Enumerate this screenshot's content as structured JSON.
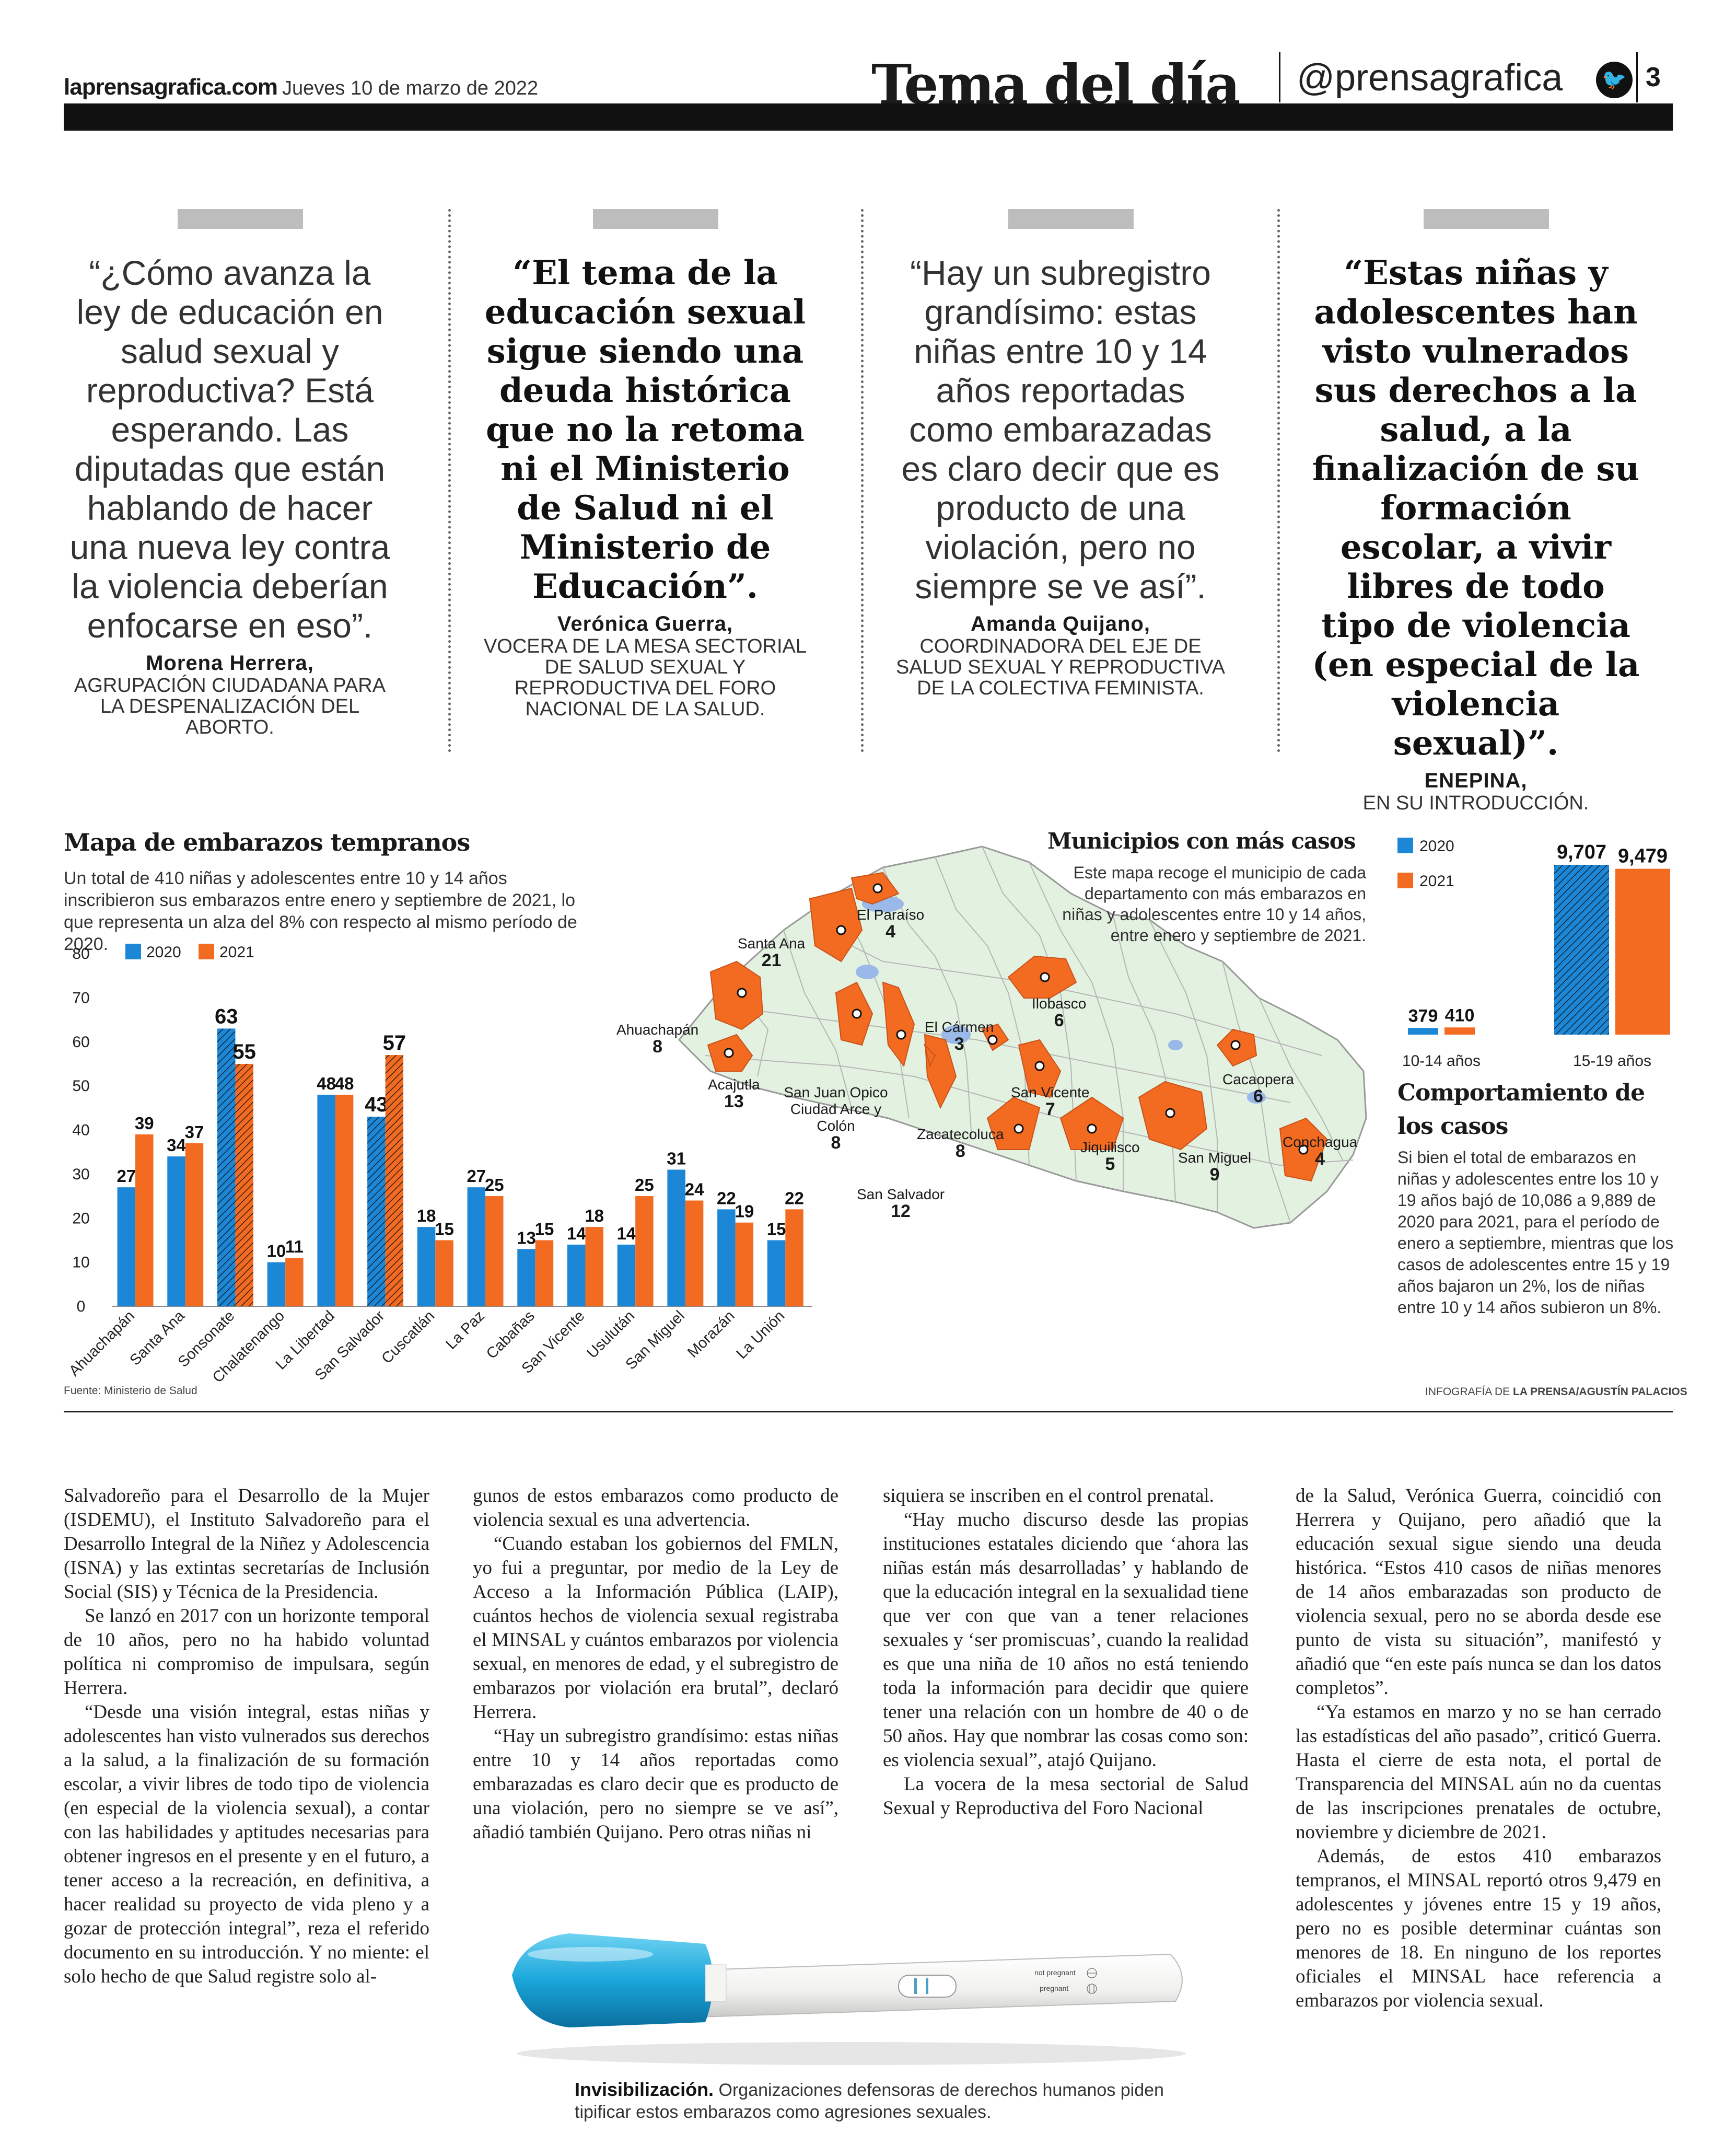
{
  "header": {
    "site": "laprensagrafica.com",
    "date": "Jueves 10 de marzo de 2022",
    "section": "Tema del día",
    "handle": "@prensagrafica",
    "page": "3"
  },
  "quotes": [
    {
      "text": "“¿Cómo avanza la ley de educación en salud sexual y reproductiva? Está esperando. Las diputadas que están hablando de hacer una nueva ley contra la violencia deberían enfocarse en eso”.",
      "name": "Morena Herrera,",
      "role": "AGRUPACIÓN CIUDADANA PARA LA DESPENALIZACIÓN DEL ABORTO."
    },
    {
      "text": "“El tema de la educación sexual sigue siendo una deuda histórica que no la retoma ni el Ministerio de Salud ni el Ministerio de Educación”.",
      "name": "Verónica Guerra,",
      "role": "VOCERA DE LA MESA SECTORIAL DE SALUD SEXUAL Y REPRODUCTIVA DEL FORO NACIONAL DE LA SALUD."
    },
    {
      "text": "“Hay un subregistro grandísimo: estas niñas entre 10 y 14 años reportadas como embarazadas es claro decir que es producto de una violación, pero no siempre se ve así”.",
      "name": "Amanda Quijano,",
      "role": "COORDINADORA DEL EJE DE SALUD SEXUAL Y REPRODUCTIVA DE LA COLECTIVA FEMINISTA."
    },
    {
      "text": "“Estas niñas y adolescentes han visto vulnerados sus derechos a la salud, a la finalización de su formación escolar, a vivir libres de todo tipo de violencia (en especial de la violencia sexual)”.",
      "name": "ENEPINA,",
      "role": "EN SU INTRODUCCIÓN."
    }
  ],
  "infographic": {
    "title": "Mapa de embarazos tempranos",
    "subtitle": "Un total de 410 niñas y adolescentes entre 10 y 14 años inscribieron sus embarazos entre enero y septiembre de 2021, lo que representa un alza del 8% con respecto al mismo período de 2020.",
    "source": "Fuente: Ministerio de Salud",
    "credit_prefix": "INFOGRAFÍA DE ",
    "credit": "LA PRENSA/AGUSTÍN PALACIOS",
    "map_title": "Municipios con más casos",
    "map_text": "Este mapa recoge el municipio de cada departamento con más embarazos en niñas y adolescentes entre 10 y 14 años, entre enero y septiembre de 2021.",
    "behavior_title": "Comportamiento de los casos",
    "behavior_text": "Si bien el total de embarazos en niñas y adolescentes entre los 10 y 19 años bajó de 10,086 a 9,889 de 2020 para 2021, para el período de enero a septiembre, mientras que los casos de adolescentes entre 15 y 19 años bajaron un 2%, los de niñas entre 10 y 14 años subieron un 8%.",
    "municipios": [
      {
        "name": "Santa Ana",
        "value": "21"
      },
      {
        "name": "El Paraíso",
        "value": "4"
      },
      {
        "name": "Ahuachapán",
        "value": "8"
      },
      {
        "name": "Acajutla",
        "value": "13"
      },
      {
        "name": "San Juan Opico Ciudad Arce y Colón",
        "value": "8"
      },
      {
        "name": "El Cármen",
        "value": "3"
      },
      {
        "name": "Ilobasco",
        "value": "6"
      },
      {
        "name": "San Vicente",
        "value": "7"
      },
      {
        "name": "Zacatecoluca",
        "value": "8"
      },
      {
        "name": "Jiquilisco",
        "value": "5"
      },
      {
        "name": "San Miguel",
        "value": "9"
      },
      {
        "name": "Cacaopera",
        "value": "6"
      },
      {
        "name": "Conchagua",
        "value": "4"
      },
      {
        "name": "San Salvador",
        "value": "12"
      }
    ]
  },
  "chart_data": [
    {
      "type": "bar",
      "title": "",
      "categories": [
        "Ahuachapán",
        "Santa Ana",
        "Sonsonate",
        "Chalatenango",
        "La Libertad",
        "San Salvador",
        "Cuscatlán",
        "La Paz",
        "Cabañas",
        "San Vicente",
        "Usulután",
        "San Miguel",
        "Morazán",
        "La Unión"
      ],
      "series": [
        {
          "name": "2020",
          "values": [
            27,
            34,
            63,
            10,
            48,
            43,
            18,
            27,
            13,
            14,
            14,
            31,
            22,
            15
          ]
        },
        {
          "name": "2021",
          "values": [
            39,
            37,
            55,
            11,
            48,
            57,
            15,
            25,
            15,
            18,
            25,
            24,
            19,
            22
          ]
        }
      ],
      "ylim": [
        0,
        80
      ],
      "yticks": [
        0,
        10,
        20,
        30,
        40,
        50,
        60,
        70,
        80
      ],
      "highlight": [
        "Sonsonate",
        "San Salvador"
      ],
      "colors": {
        "2020": "#1c87d6",
        "2021": "#f26b21"
      },
      "legend": "top-left"
    },
    {
      "type": "bar",
      "title": "",
      "categories": [
        "10-14 años",
        "15-19 años"
      ],
      "series": [
        {
          "name": "2020",
          "values": [
            379,
            9707
          ]
        },
        {
          "name": "2021",
          "values": [
            410,
            9479
          ]
        }
      ],
      "value_labels": [
        [
          "379",
          "9,707"
        ],
        [
          "410",
          "9,479"
        ]
      ],
      "colors": {
        "2020": "#1c87d6",
        "2021": "#f26b21"
      },
      "legend": "top-left"
    }
  ],
  "body": {
    "col1": [
      "Salvadoreño para el Desarrollo de la Mujer (ISDEMU), el Instituto Salvadoreño para el Desarrollo Integral de la Niñez y Adolescencia (ISNA) y las extintas secretarías de Inclusión Social (SIS) y Técnica de la Presidencia.",
      "Se lanzó en 2017 con un horizonte temporal de 10 años, pero no ha habido voluntad política ni compromiso de impulsara, según Herrera.",
      "“Desde una visión integral, estas niñas y adolescentes han visto vulnerados sus derechos a la salud, a la finalización de su formación escolar, a vivir libres de todo tipo de violencia (en especial de la violencia sexual), a contar con las habilidades y aptitudes necesarias para obtener ingresos en el presente y en el futuro, a tener acceso a la recreación, en definitiva, a hacer realidad su proyecto de vida pleno y a gozar de protección integral”, reza el referido documento en su introducción. Y no miente: el solo hecho de que Salud registre solo al-"
    ],
    "col2": [
      "gunos de estos embarazos como producto de violencia sexual es una advertencia.",
      "“Cuando estaban los gobiernos del FMLN, yo fui a preguntar, por medio de la Ley de Acceso a la Información Pública (LAIP), cuántos hechos de violencia sexual registraba el MINSAL y cuántos embarazos por violencia sexual, en menores de edad, y el subregistro de embarazos por violación era brutal”, declaró Herrera.",
      "“Hay un subregistro grandísimo: estas niñas entre 10 y 14 años reportadas como embarazadas es claro decir que es producto de una violación, pero no siempre se ve así”, añadió también Quijano. Pero otras niñas ni"
    ],
    "col3": [
      "siquiera se inscriben en el control prenatal.",
      "“Hay mucho discurso desde las propias instituciones estatales diciendo que ‘ahora las niñas están más desarrolladas’ y hablando de que la educación integral en la sexualidad tiene que ver con que van a tener relaciones sexuales y ‘ser promiscuas’, cuando la realidad es que una niña de 10 años no está teniendo toda la información para decidir que quiere tener una relación con un hombre de 40 o de 50 años. Hay que nombrar las cosas como son: es violencia sexual”, atajó Quijano.",
      "La vocera de la mesa sectorial de Salud Sexual y Reproductiva del Foro Nacional"
    ],
    "col4": [
      "de la Salud, Verónica Guerra, coincidió con Herrera y Quijano, pero añadió que la educación sexual sigue siendo una deuda histórica. “Estos 410 casos de niñas menores de 14 años embarazadas son producto de violencia sexual, pero no se aborda desde ese punto de vista su situación”, manifestó y añadió que “en este país nunca se dan los datos completos”.",
      "“Ya estamos en marzo y no se han cerrado las estadísticas del año pasado”, criticó Guerra. Hasta el cierre de esta nota, el portal de Transparencia del MINSAL aún no da cuentas de las inscripciones prenatales de octubre, noviembre y diciembre de 2021.",
      "Además, de estos 410 embarazos tempranos, el MINSAL reportó otros 9,479 en adolescentes y jóvenes entre 15 y 19 años, pero no es posible determinar cuántas son menores de 18. En ninguno de los reportes oficiales el MINSAL hace referencia a embarazos por violencia sexual."
    ]
  },
  "photo": {
    "test_label_1": "not pregnant",
    "test_label_2": "pregnant",
    "caption_title": "Invisibilización.",
    "caption_text": "Organizaciones defensoras de derechos humanos piden tipificar estos embarazos como agresiones sexuales."
  }
}
